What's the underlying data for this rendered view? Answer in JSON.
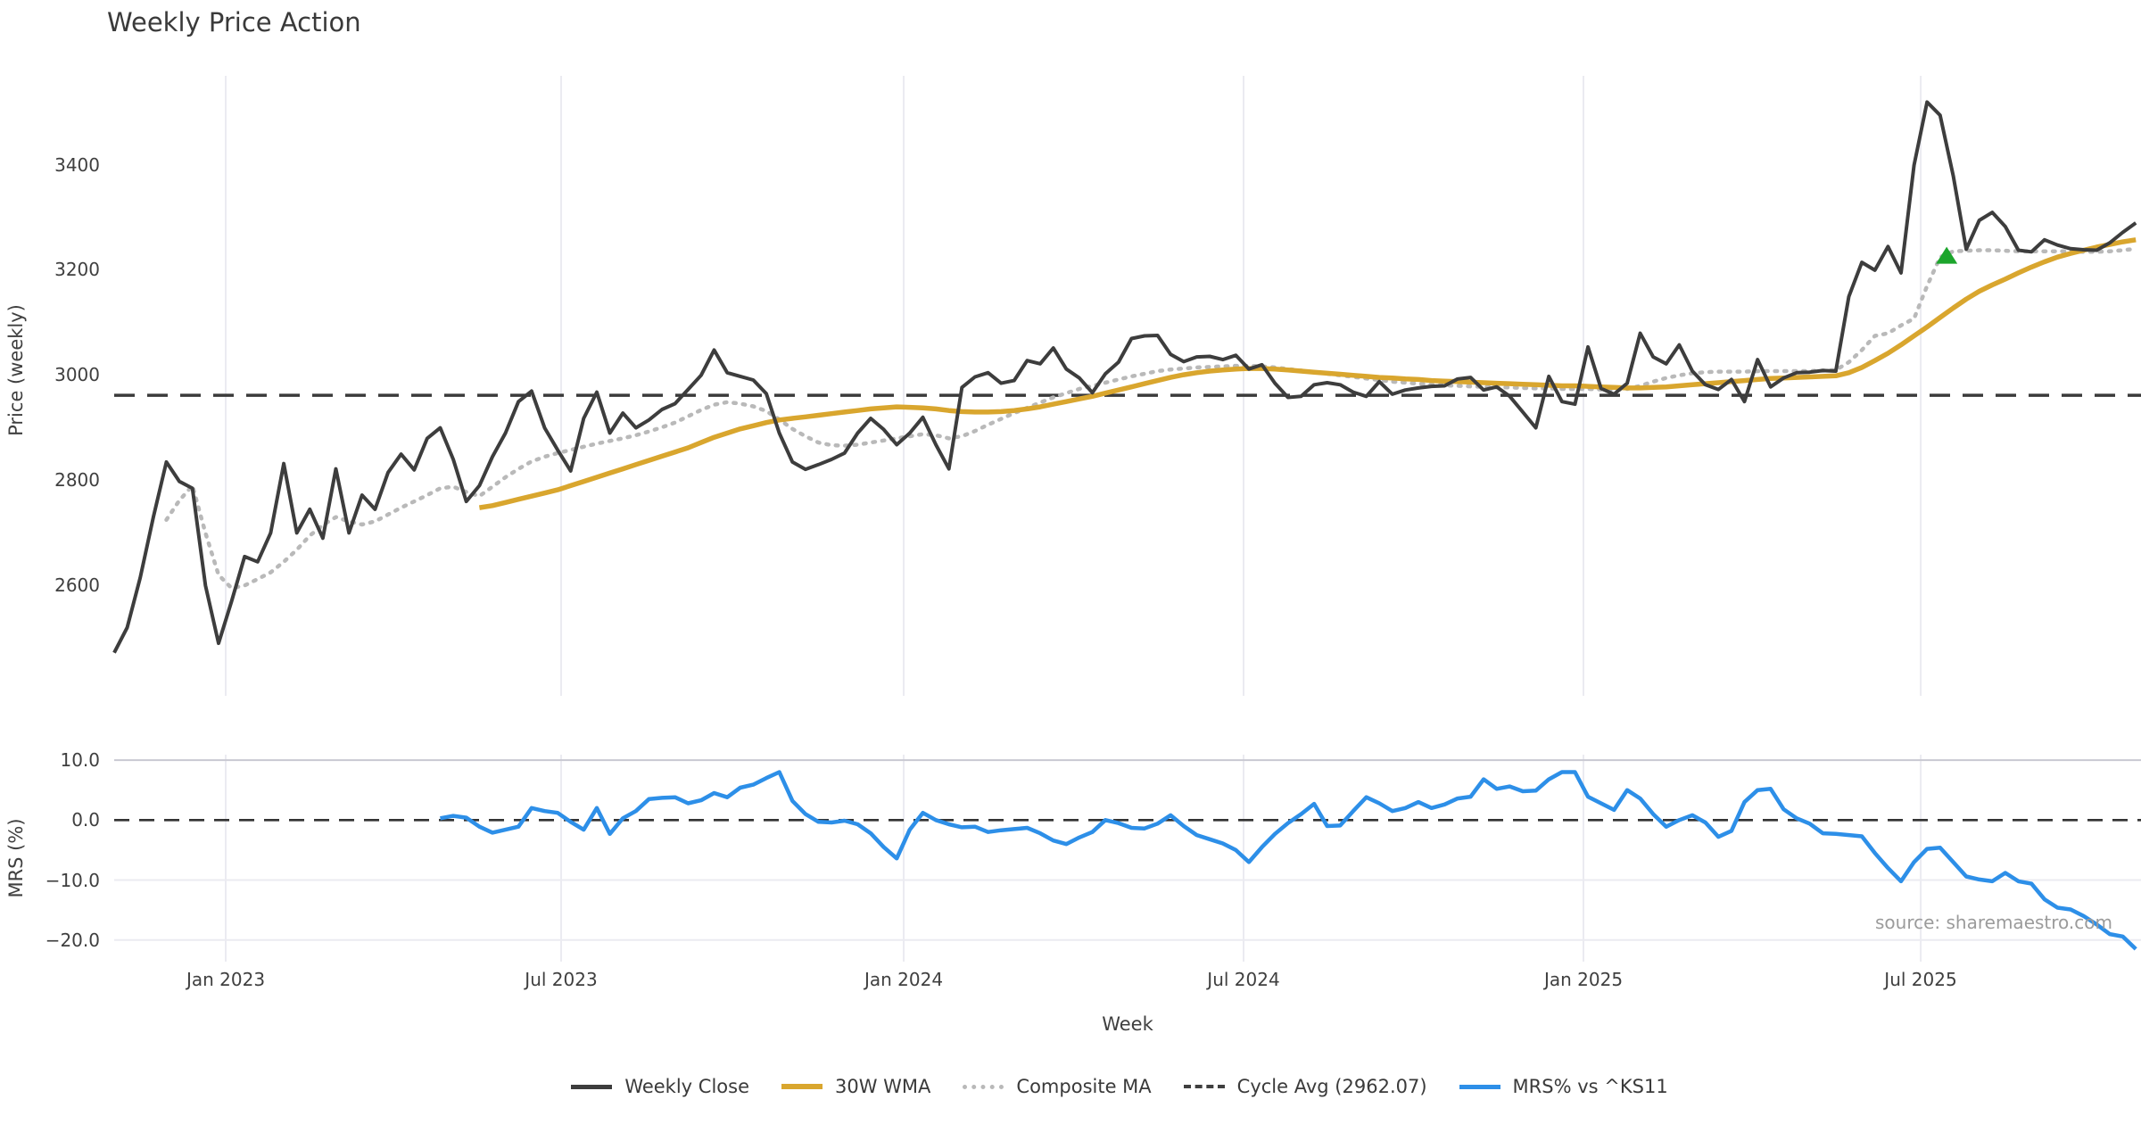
{
  "title": "Weekly Price Action",
  "source_note": "source: sharemaestro.com",
  "axes": {
    "top": {
      "ylabel": "Price (weekly)",
      "y_ticks": [
        "3400",
        "3200",
        "3000",
        "2800",
        "2600"
      ]
    },
    "bottom": {
      "ylabel": "MRS (%)",
      "y_ticks": [
        "10.0",
        "0.0",
        "−10.0",
        "−20.0"
      ]
    },
    "xlabel": "Week",
    "x_ticks": [
      "Jan 2023",
      "Jul 2023",
      "Jan 2024",
      "Jul 2024",
      "Jan 2025",
      "Jul 2025"
    ]
  },
  "legend": {
    "items": [
      {
        "label": "Weekly Close"
      },
      {
        "label": "30W WMA"
      },
      {
        "label": "Composite MA"
      },
      {
        "label": "Cycle Avg (2962.07)"
      },
      {
        "label": "MRS% vs ^KS11"
      }
    ]
  },
  "colors": {
    "close": "#3d3d3d",
    "wma30": "#d9a62e",
    "composite": "#b9b9b9",
    "cycle_avg": "#3a3a3a",
    "mrs": "#2d8fe8",
    "signal_green": "#1ca52c",
    "grid": "#ebebf1",
    "grid_strong": "#c9c9d2"
  },
  "chart_data": {
    "type": "line",
    "title": "Weekly Price Action",
    "xlabel": "Week",
    "x_unit": "week_index",
    "x_domain_weeks": [
      0,
      155.4
    ],
    "x_tick_weeks": [
      8.55,
      34.27,
      60.53,
      86.59,
      112.65,
      138.51
    ],
    "x_tick_labels": [
      "Jan 2023",
      "Jul 2023",
      "Jan 2024",
      "Jul 2024",
      "Jan 2025",
      "Jul 2025"
    ],
    "panels": [
      {
        "name": "price",
        "ylabel": "Price (weekly)",
        "ylim": [
          2390,
          3570
        ],
        "y_tick_values": [
          3400,
          3200,
          3000,
          2800,
          2600
        ],
        "cycle_avg": 2962.07,
        "signal_marker": {
          "shape": "triangle-up",
          "week": 140.5,
          "price": 3226
        },
        "series": [
          {
            "name": "Weekly Close",
            "start_week": 0,
            "values": [
              2472,
              2520,
              2615,
              2730,
              2835,
              2798,
              2785,
              2600,
              2490,
              2570,
              2655,
              2645,
              2700,
              2832,
              2700,
              2745,
              2690,
              2822,
              2700,
              2772,
              2745,
              2815,
              2850,
              2820,
              2880,
              2900,
              2840,
              2760,
              2790,
              2845,
              2890,
              2950,
              2970,
              2900,
              2858,
              2818,
              2918,
              2968,
              2890,
              2928,
              2900,
              2915,
              2935,
              2946,
              2973,
              3000,
              3048,
              3005,
              2998,
              2991,
              2965,
              2890,
              2835,
              2821,
              2830,
              2840,
              2852,
              2890,
              2918,
              2897,
              2868,
              2890,
              2920,
              2868,
              2822,
              2977,
              2997,
              3005,
              2985,
              2990,
              3028,
              3022,
              3052,
              3012,
              2995,
              2967,
              3003,
              3025,
              3070,
              3075,
              3076,
              3040,
              3026,
              3035,
              3036,
              3030,
              3038,
              3012,
              3020,
              2985,
              2958,
              2960,
              2982,
              2986,
              2982,
              2968,
              2960,
              2988,
              2964,
              2972,
              2976,
              2979,
              2980,
              2993,
              2996,
              2972,
              2978,
              2960,
              2930,
              2900,
              2998,
              2950,
              2945,
              3054,
              2975,
              2964,
              2985,
              3080,
              3035,
              3022,
              3058,
              3008,
              2982,
              2973,
              2992,
              2950,
              3030,
              2978,
              2995,
              3005,
              3006,
              3009,
              3008,
              3150,
              3215,
              3200,
              3245,
              3195,
              3400,
              3520,
              3495,
              3380,
              3240,
              3295,
              3310,
              3283,
              3238,
              3235,
              3258,
              3248,
              3241,
              3239,
              3238,
              3252,
              3272,
              3290
            ]
          },
          {
            "name": "30W WMA",
            "start_week": 28,
            "values": [
              2748,
              2752,
              2758,
              2764,
              2770,
              2776,
              2782,
              2790,
              2798,
              2806,
              2814,
              2822,
              2830,
              2838,
              2846,
              2854,
              2862,
              2872,
              2882,
              2890,
              2898,
              2904,
              2910,
              2915,
              2918,
              2921,
              2924,
              2927,
              2930,
              2933,
              2936,
              2938,
              2940,
              2939,
              2938,
              2936,
              2933,
              2931,
              2930,
              2930,
              2931,
              2933,
              2936,
              2940,
              2945,
              2950,
              2955,
              2960,
              2966,
              2972,
              2978,
              2984,
              2990,
              2996,
              3001,
              3005,
              3008,
              3010,
              3012,
              3013,
              3013,
              3012,
              3010,
              3008,
              3006,
              3004,
              3002,
              3000,
              2998,
              2996,
              2995,
              2993,
              2992,
              2990,
              2989,
              2988,
              2987,
              2986,
              2985,
              2984,
              2983,
              2982,
              2981,
              2980,
              2980,
              2979,
              2978,
              2977,
              2976,
              2976,
              2977,
              2978,
              2980,
              2982,
              2984,
              2986,
              2988,
              2990,
              2992,
              2994,
              2995,
              2996,
              2997,
              2998,
              2999,
              3005,
              3015,
              3028,
              3042,
              3058,
              3075,
              3092,
              3110,
              3128,
              3145,
              3160,
              3172,
              3183,
              3195,
              3206,
              3216,
              3225,
              3232,
              3238,
              3244,
              3249,
              3254,
              3258
            ]
          },
          {
            "name": "Composite MA",
            "start_week": 4,
            "values": [
              2725,
              2762,
              2790,
              2700,
              2620,
              2595,
              2600,
              2612,
              2625,
              2645,
              2668,
              2695,
              2715,
              2730,
              2722,
              2716,
              2722,
              2735,
              2748,
              2760,
              2772,
              2785,
              2788,
              2778,
              2770,
              2788,
              2806,
              2822,
              2836,
              2845,
              2852,
              2858,
              2864,
              2870,
              2875,
              2880,
              2886,
              2893,
              2901,
              2910,
              2922,
              2934,
              2944,
              2949,
              2946,
              2941,
              2932,
              2916,
              2898,
              2884,
              2872,
              2867,
              2866,
              2868,
              2872,
              2876,
              2880,
              2884,
              2888,
              2886,
              2880,
              2884,
              2894,
              2906,
              2917,
              2928,
              2938,
              2948,
              2958,
              2966,
              2974,
              2980,
              2986,
              2992,
              2998,
              3003,
              3008,
              3011,
              3013,
              3015,
              3016,
              3017,
              3018,
              3018,
              3017,
              3015,
              3012,
              3009,
              3006,
              3003,
              3000,
              2997,
              2994,
              2991,
              2988,
              2986,
              2984,
              2982,
              2981,
              2980,
              2979,
              2978,
              2977,
              2977,
              2976,
              2975,
              2975,
              2974,
              2974,
              2974,
              2973,
              2972,
              2974,
              2980,
              2988,
              2995,
              3000,
              3004,
              3006,
              3007,
              3007,
              3007,
              3008,
              3008,
              3008,
              3008,
              3008,
              3009,
              3010,
              3025,
              3048,
              3075,
              3080,
              3095,
              3108,
              3170,
              3225,
              3236,
              3237,
              3238,
              3238,
              3237,
              3236,
              3236,
              3236,
              3236,
              3236,
              3235,
              3235,
              3236,
              3238,
              3241
            ]
          }
        ]
      },
      {
        "name": "mrs",
        "ylabel": "MRS (%)",
        "ylim": [
          -23.6,
          10.9
        ],
        "y_tick_values": [
          10,
          0,
          -10,
          -20
        ],
        "zero_line": 0,
        "grid_values": [
          10,
          -10,
          -20
        ],
        "series": [
          {
            "name": "MRS% vs ^KS11",
            "start_week": 25,
            "values": [
              0.3,
              0.7,
              0.4,
              -1.1,
              -2.1,
              -1.6,
              -1.1,
              2.0,
              1.5,
              1.2,
              -0.3,
              -1.6,
              2.0,
              -2.3,
              0.3,
              1.5,
              3.5,
              3.7,
              3.8,
              2.8,
              3.3,
              4.5,
              3.8,
              5.4,
              5.9,
              7.0,
              8.0,
              3.2,
              1.0,
              -0.3,
              -0.4,
              -0.1,
              -0.7,
              -2.2,
              -4.5,
              -6.4,
              -1.6,
              1.2,
              0.0,
              -0.7,
              -1.2,
              -1.1,
              -2.0,
              -1.7,
              -1.5,
              -1.3,
              -2.2,
              -3.4,
              -4.0,
              -2.9,
              -2.0,
              0.0,
              -0.5,
              -1.3,
              -1.4,
              -0.6,
              0.8,
              -1.0,
              -2.5,
              -3.2,
              -3.9,
              -5.0,
              -7.0,
              -4.5,
              -2.3,
              -0.5,
              1.0,
              2.7,
              -1.0,
              -0.9,
              1.5,
              3.8,
              2.8,
              1.5,
              2.0,
              3.0,
              2.0,
              2.6,
              3.6,
              3.9,
              6.8,
              5.2,
              5.6,
              4.8,
              4.9,
              6.8,
              8.0,
              8.0,
              3.9,
              2.8,
              1.7,
              5.0,
              3.6,
              1.0,
              -1.1,
              0.0,
              0.8,
              -0.4,
              -2.8,
              -1.8,
              3.0,
              5.0,
              5.2,
              1.8,
              0.3,
              -0.6,
              -2.2,
              -2.3,
              -2.5,
              -2.7,
              -5.5,
              -8.0,
              -10.2,
              -7.0,
              -4.8,
              -4.6,
              -7.0,
              -9.4,
              -9.9,
              -10.2,
              -8.8,
              -10.2,
              -10.6,
              -13.2,
              -14.6,
              -14.9,
              -16.0,
              -17.4,
              -19.0,
              -19.4,
              -21.5
            ]
          }
        ]
      }
    ]
  }
}
